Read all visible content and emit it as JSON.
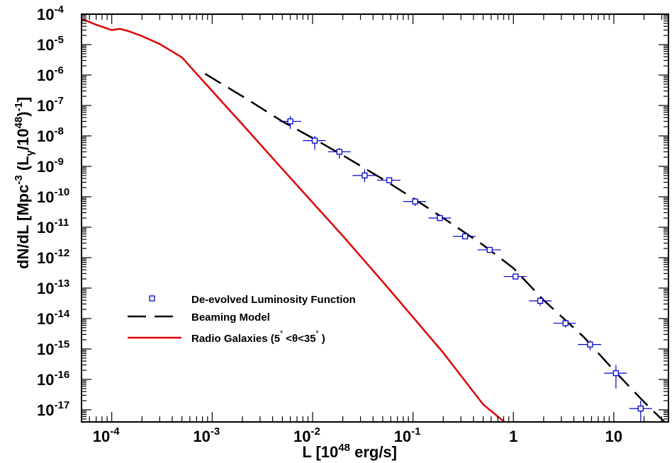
{
  "chart_data": {
    "type": "line",
    "xlabel": "L [10",
    "xlabel_exp": "48",
    "xlabel_tail": " erg/s]",
    "ylabel": "dN/dL [Mpc",
    "ylabel_exp1": "-3",
    "ylabel_mid": " (L",
    "ylabel_sub": "γ",
    "ylabel_div": "/10",
    "ylabel_exp2": "48",
    "ylabel_tail": ")",
    "ylabel_exp3": "-1",
    "ylabel_end": "]",
    "x_scale": "log",
    "y_scale": "log",
    "xlim": [
      5e-05,
      35
    ],
    "ylim": [
      4e-18,
      0.0001
    ],
    "x_ticks": [
      {
        "exp": "-4",
        "base": "10",
        "value": 0.0001
      },
      {
        "exp": "-3",
        "base": "10",
        "value": 0.001
      },
      {
        "exp": "-2",
        "base": "10",
        "value": 0.01
      },
      {
        "exp": "-1",
        "base": "10",
        "value": 0.1
      },
      {
        "label": "1",
        "value": 1
      },
      {
        "label": "10",
        "value": 10
      }
    ],
    "y_ticks": [
      {
        "exp": "-4",
        "value": -4
      },
      {
        "exp": "-5",
        "value": -5
      },
      {
        "exp": "-6",
        "value": -6
      },
      {
        "exp": "-7",
        "value": -7
      },
      {
        "exp": "-8",
        "value": -8
      },
      {
        "exp": "-9",
        "value": -9
      },
      {
        "exp": "-10",
        "value": -10
      },
      {
        "exp": "-11",
        "value": -11
      },
      {
        "exp": "-12",
        "value": -12
      },
      {
        "exp": "-13",
        "value": -13
      },
      {
        "exp": "-14",
        "value": -14
      },
      {
        "exp": "-15",
        "value": -15
      },
      {
        "exp": "-16",
        "value": -16
      },
      {
        "exp": "-17",
        "value": -17
      }
    ],
    "y_tick_base": "10",
    "legend_placement": "lower-left",
    "series": [
      {
        "name": "De-evolved Luminosity Function",
        "type": "scatter",
        "color": "#0000cc",
        "points": [
          {
            "x": 0.006,
            "y": 3e-08,
            "xlo": 0.0047,
            "xhi": 0.0077,
            "ylo": 1.7e-08,
            "yhi": 4.5e-08
          },
          {
            "x": 0.0105,
            "y": 7e-09,
            "xlo": 0.008,
            "xhi": 0.0135,
            "ylo": 3.5e-09,
            "yhi": 1e-08
          },
          {
            "x": 0.0185,
            "y": 3e-09,
            "xlo": 0.0143,
            "xhi": 0.024,
            "ylo": 1.8e-09,
            "yhi": 4e-09
          },
          {
            "x": 0.033,
            "y": 5e-10,
            "xlo": 0.025,
            "xhi": 0.042,
            "ylo": 3e-10,
            "yhi": 8e-10
          },
          {
            "x": 0.058,
            "y": 3.5e-10,
            "xlo": 0.044,
            "xhi": 0.075,
            "ylo": 2.8e-10,
            "yhi": 4.2e-10
          },
          {
            "x": 0.105,
            "y": 7e-11,
            "xlo": 0.08,
            "xhi": 0.135,
            "ylo": 5e-11,
            "yhi": 9e-11
          },
          {
            "x": 0.185,
            "y": 2e-11,
            "xlo": 0.143,
            "xhi": 0.24,
            "ylo": 1.6e-11,
            "yhi": 2.5e-11
          },
          {
            "x": 0.33,
            "y": 5e-12,
            "xlo": 0.25,
            "xhi": 0.42,
            "ylo": 4.2e-12,
            "yhi": 6e-12
          },
          {
            "x": 0.58,
            "y": 1.8e-12,
            "xlo": 0.44,
            "xhi": 0.75,
            "ylo": 1.4e-12,
            "yhi": 2.2e-12
          },
          {
            "x": 1.05,
            "y": 2.4e-13,
            "xlo": 0.8,
            "xhi": 1.35,
            "ylo": 2e-13,
            "yhi": 2.9e-13
          },
          {
            "x": 1.85,
            "y": 3.8e-14,
            "xlo": 1.43,
            "xhi": 2.4,
            "ylo": 2.6e-14,
            "yhi": 5e-14
          },
          {
            "x": 3.3,
            "y": 7e-15,
            "xlo": 2.5,
            "xhi": 4.2,
            "ylo": 5e-15,
            "yhi": 9e-15
          },
          {
            "x": 5.8,
            "y": 1.4e-15,
            "xlo": 4.4,
            "xhi": 7.5,
            "ylo": 9e-16,
            "yhi": 1.9e-15
          },
          {
            "x": 10.5,
            "y": 1.6e-16,
            "xlo": 8.0,
            "xhi": 13.5,
            "ylo": 5e-17,
            "yhi": 3e-16
          },
          {
            "x": 18.5,
            "y": 1.1e-17,
            "xlo": 14.3,
            "xhi": 24.0,
            "ylo": 4e-18,
            "yhi": 2e-17
          }
        ]
      },
      {
        "name": "Beaming Model",
        "type": "line",
        "style": "dashed",
        "color": "#000000",
        "x": [
          0.00085,
          0.002,
          0.005,
          0.01,
          0.02,
          0.05,
          0.1,
          0.2,
          0.5,
          1,
          2,
          5,
          10,
          20,
          35
        ],
        "y": [
          1.1e-06,
          2e-07,
          3e-08,
          8.5e-09,
          2.3e-09,
          3.8e-10,
          9e-11,
          2e-11,
          2.6e-12,
          4.5e-13,
          4e-14,
          2.5e-15,
          2e-16,
          1.8e-17,
          3e-18
        ]
      },
      {
        "name": "Radio Galaxies (5",
        "name_deg1": "°",
        "name_mid": " <θ<35",
        "name_deg2": "°",
        "name_tail": " )",
        "type": "line",
        "style": "solid",
        "color": "#dd0000",
        "x": [
          5e-05,
          7e-05,
          0.0001,
          0.00012,
          0.00015,
          0.0002,
          0.0003,
          0.0005,
          0.0007,
          0.001,
          0.002,
          0.005,
          0.01,
          0.02,
          0.05,
          0.1,
          0.2,
          0.5,
          0.93
        ],
        "y": [
          7e-05,
          4.5e-05,
          3e-05,
          3.3e-05,
          2.7e-05,
          1.9e-05,
          1.05e-05,
          3.8e-06,
          1.1e-06,
          3e-07,
          2.4e-08,
          8.2e-10,
          6.5e-11,
          5.2e-12,
          1.6e-13,
          1.1e-14,
          7.5e-16,
          1.5e-17,
          2.8e-18
        ]
      }
    ]
  }
}
